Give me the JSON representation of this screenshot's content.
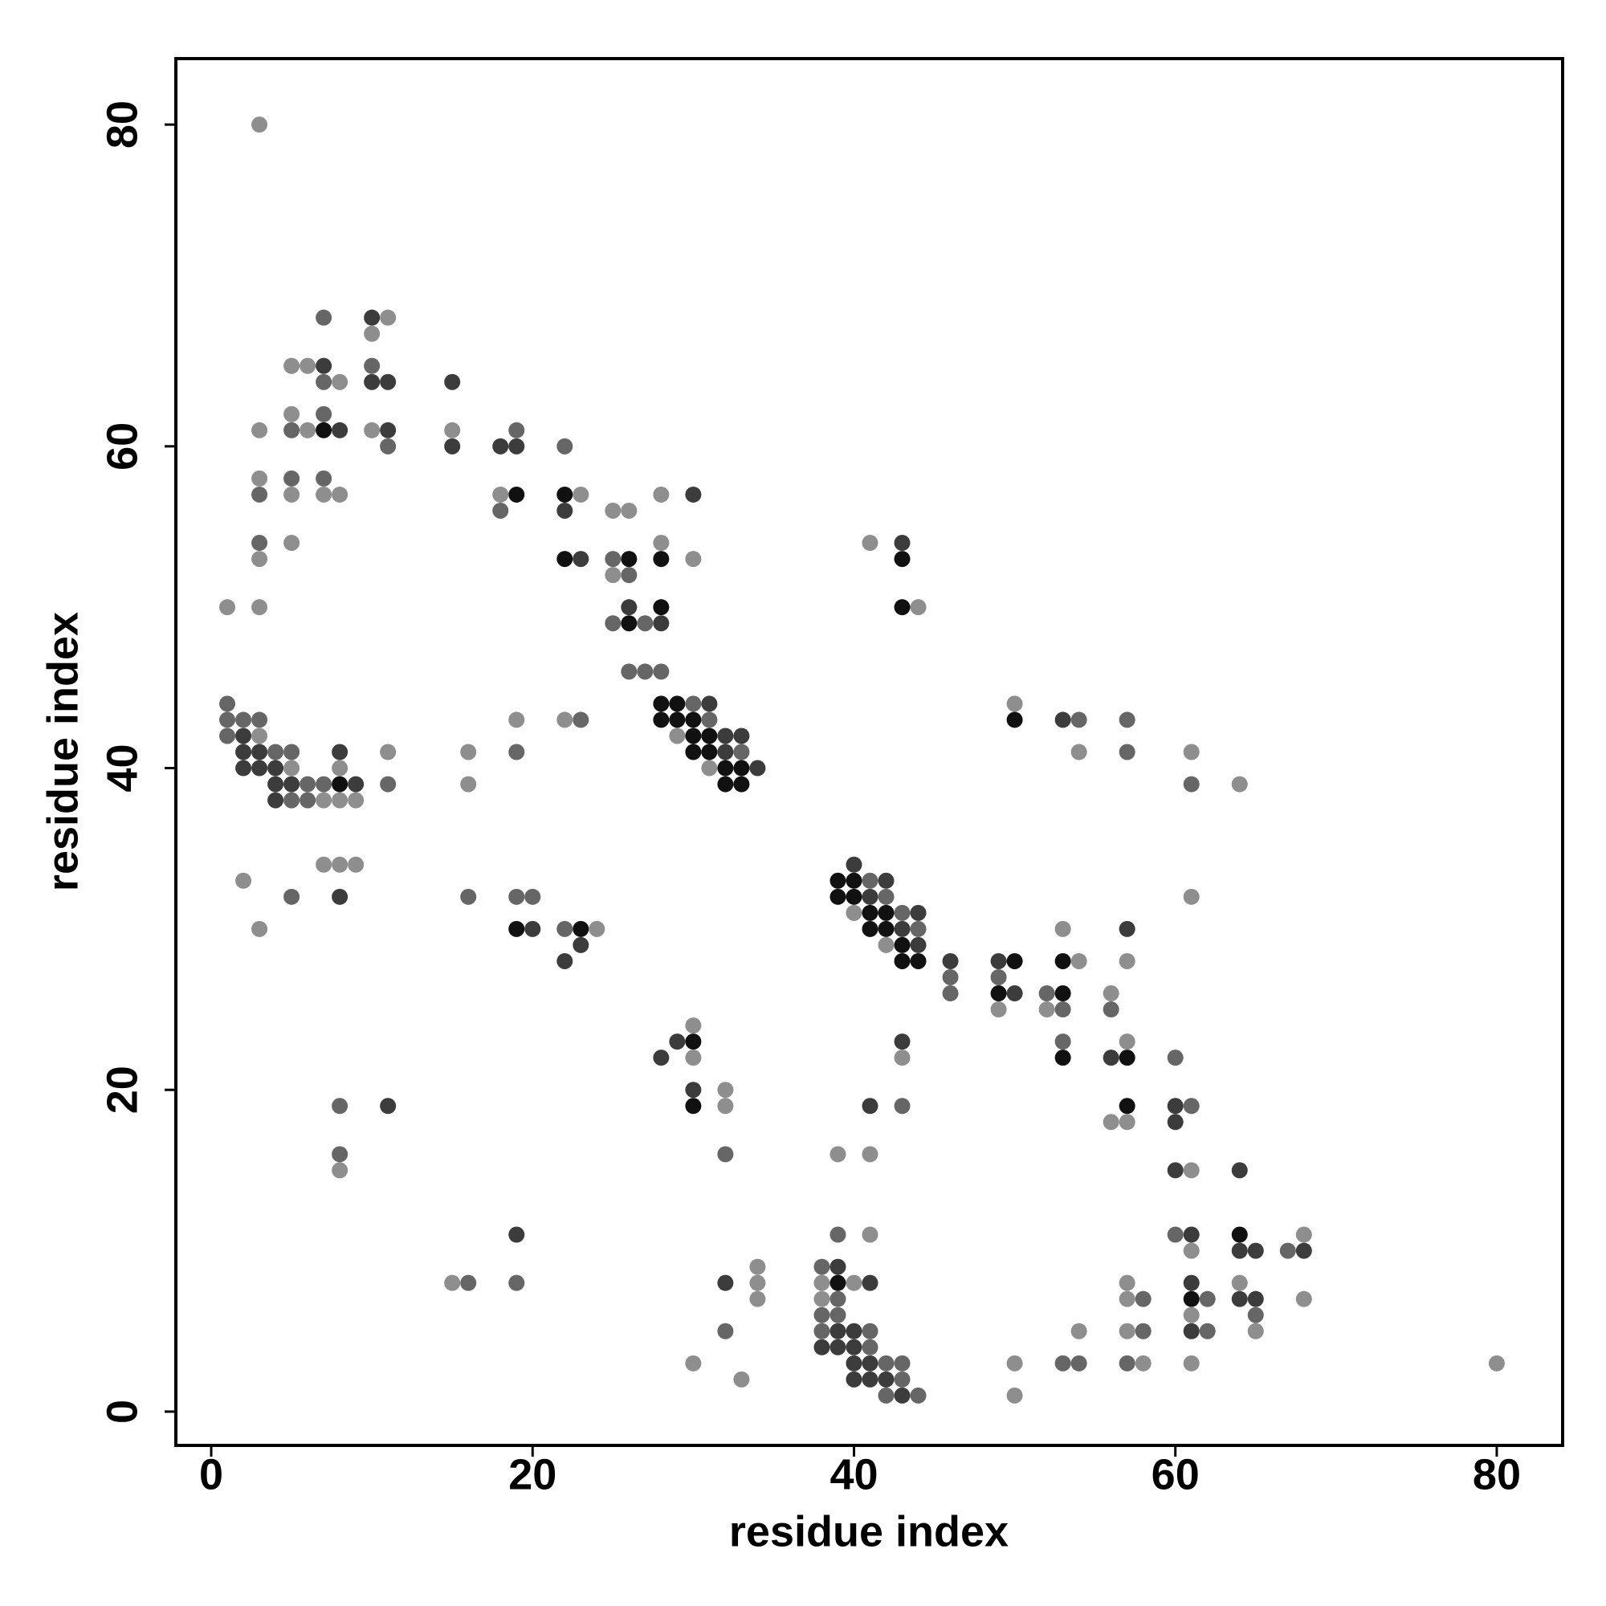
{
  "chart_data": {
    "type": "scatter",
    "xlabel": "residue index",
    "ylabel": "residue index",
    "xlim": [
      -2.2,
      84.1
    ],
    "ylim": [
      -2.1,
      84.1
    ],
    "xticks": [
      0,
      20,
      40,
      60,
      80
    ],
    "yticks": [
      0,
      20,
      40,
      60,
      80
    ],
    "series": [
      {
        "color": "#111111",
        "x": [
          19,
          22,
          7,
          22,
          26,
          28,
          43,
          28,
          43,
          26,
          28,
          29,
          28,
          29,
          30,
          50,
          30,
          31,
          30,
          31,
          32,
          33,
          8,
          32,
          33,
          39,
          40,
          39,
          40,
          41,
          42,
          19,
          23,
          41,
          42,
          43,
          43,
          44,
          50,
          53,
          49,
          53,
          30,
          53,
          57,
          30,
          57,
          64,
          39,
          61
        ],
        "values": [
          57,
          57,
          61,
          53,
          53,
          53,
          53,
          50,
          50,
          49,
          44,
          44,
          43,
          43,
          43,
          43,
          42,
          42,
          41,
          41,
          40,
          40,
          39,
          39,
          39,
          33,
          33,
          32,
          32,
          31,
          31,
          30,
          30,
          30,
          30,
          29,
          28,
          28,
          28,
          28,
          26,
          26,
          23,
          22,
          22,
          19,
          19,
          11,
          8,
          7
        ]
      },
      {
        "color": "#3c3c3c",
        "x": [
          10,
          7,
          10,
          11,
          15,
          8,
          11,
          15,
          18,
          19,
          30,
          22,
          43,
          23,
          26,
          28,
          31,
          2,
          32,
          33,
          53,
          2,
          3,
          8,
          32,
          2,
          3,
          4,
          34,
          4,
          5,
          9,
          4,
          40,
          42,
          8,
          41,
          44,
          20,
          57,
          43,
          23,
          44,
          22,
          46,
          49,
          50,
          29,
          43,
          28,
          56,
          30,
          11,
          41,
          60,
          60,
          60,
          64,
          19,
          61,
          64,
          65,
          68,
          39,
          32,
          41,
          61,
          64,
          65,
          39,
          40,
          61,
          38,
          39,
          40,
          40,
          41,
          40,
          41,
          42,
          43
        ],
        "values": [
          68,
          65,
          64,
          64,
          64,
          61,
          61,
          60,
          60,
          60,
          57,
          56,
          54,
          53,
          50,
          49,
          44,
          42,
          42,
          42,
          43,
          41,
          41,
          41,
          41,
          40,
          40,
          40,
          40,
          39,
          39,
          39,
          38,
          34,
          33,
          32,
          32,
          31,
          30,
          30,
          30,
          29,
          29,
          28,
          28,
          28,
          26,
          23,
          23,
          22,
          22,
          20,
          19,
          19,
          19,
          18,
          15,
          15,
          11,
          11,
          10,
          10,
          10,
          9,
          8,
          8,
          8,
          7,
          7,
          5,
          5,
          5,
          4,
          4,
          4,
          3,
          3,
          2,
          2,
          2,
          1
        ]
      },
      {
        "color": "#666666",
        "x": [
          7,
          10,
          7,
          7,
          5,
          19,
          11,
          22,
          5,
          7,
          3,
          18,
          3,
          25,
          26,
          25,
          27,
          26,
          27,
          28,
          1,
          30,
          1,
          2,
          3,
          23,
          31,
          54,
          57,
          1,
          4,
          5,
          19,
          33,
          57,
          6,
          7,
          11,
          61,
          5,
          6,
          41,
          5,
          16,
          19,
          20,
          42,
          43,
          22,
          44,
          46,
          49,
          46,
          52,
          53,
          56,
          53,
          60,
          8,
          43,
          61,
          8,
          32,
          39,
          60,
          67,
          38,
          16,
          19,
          39,
          58,
          62,
          38,
          39,
          65,
          32,
          38,
          41,
          58,
          62,
          41,
          42,
          43,
          53,
          54,
          57,
          43,
          42,
          44
        ],
        "values": [
          68,
          65,
          64,
          62,
          61,
          61,
          60,
          60,
          58,
          58,
          57,
          56,
          54,
          53,
          52,
          49,
          49,
          46,
          46,
          46,
          44,
          44,
          43,
          43,
          43,
          43,
          43,
          43,
          43,
          42,
          41,
          41,
          41,
          41,
          41,
          39,
          39,
          39,
          39,
          38,
          38,
          33,
          32,
          32,
          32,
          32,
          32,
          31,
          30,
          30,
          27,
          27,
          26,
          26,
          25,
          25,
          23,
          22,
          19,
          19,
          19,
          16,
          16,
          11,
          11,
          10,
          9,
          8,
          8,
          7,
          7,
          7,
          6,
          6,
          6,
          5,
          5,
          5,
          5,
          5,
          4,
          3,
          3,
          3,
          3,
          3,
          2,
          1,
          1
        ]
      },
      {
        "color": "#8e8e8e",
        "x": [
          3,
          11,
          10,
          5,
          6,
          8,
          5,
          3,
          6,
          10,
          15,
          3,
          5,
          7,
          8,
          18,
          23,
          28,
          25,
          26,
          5,
          28,
          41,
          3,
          30,
          25,
          1,
          3,
          44,
          50,
          19,
          22,
          3,
          29,
          11,
          16,
          54,
          61,
          5,
          8,
          31,
          16,
          64,
          7,
          8,
          9,
          7,
          8,
          9,
          2,
          61,
          40,
          3,
          24,
          53,
          42,
          54,
          57,
          56,
          49,
          52,
          30,
          57,
          30,
          43,
          32,
          32,
          56,
          57,
          39,
          41,
          8,
          61,
          41,
          68,
          61,
          34,
          15,
          34,
          38,
          40,
          57,
          64,
          34,
          38,
          57,
          68,
          61,
          54,
          57,
          65,
          30,
          50,
          58,
          61,
          80,
          33,
          50
        ],
        "values": [
          80,
          68,
          67,
          65,
          65,
          64,
          62,
          61,
          61,
          61,
          61,
          58,
          57,
          57,
          57,
          57,
          57,
          57,
          56,
          56,
          54,
          54,
          54,
          53,
          53,
          52,
          50,
          50,
          50,
          44,
          43,
          43,
          42,
          42,
          41,
          41,
          41,
          41,
          40,
          40,
          40,
          39,
          39,
          38,
          38,
          38,
          34,
          34,
          34,
          33,
          32,
          31,
          30,
          30,
          30,
          29,
          28,
          28,
          26,
          25,
          25,
          24,
          23,
          22,
          22,
          20,
          19,
          18,
          18,
          16,
          16,
          15,
          15,
          11,
          11,
          10,
          9,
          8,
          8,
          8,
          8,
          8,
          8,
          7,
          7,
          7,
          7,
          6,
          5,
          5,
          5,
          3,
          3,
          3,
          3,
          3,
          2,
          1
        ]
      }
    ]
  }
}
